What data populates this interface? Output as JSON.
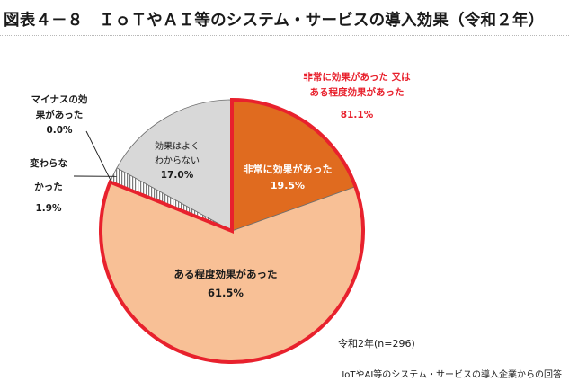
{
  "page": {
    "title": "図表４－８　ＩｏＴやＡＩ等のシステム・サービスの導入効果（令和２年）"
  },
  "chart_data": {
    "type": "pie",
    "title": "図表４－８　ＩｏＴやＡＩ等のシステム・サービスの導入効果（令和２年）",
    "start": "12 o'clock, clockwise",
    "slices": [
      {
        "label": "非常に効果があった",
        "value": 19.5,
        "label_value": "19.5%",
        "color": "#e06b1f",
        "highlighted": true
      },
      {
        "label": "ある程度効果があった",
        "value": 61.5,
        "label_value": "61.5%",
        "color": "#f8c096",
        "highlighted": true
      },
      {
        "label": "マイナスの効果があった",
        "value": 0.0,
        "label_value": "0.0%",
        "color": "#ffffff",
        "highlighted": false
      },
      {
        "label": "変わらなかった",
        "value": 1.9,
        "label_value": "1.9%",
        "color": "#9a9a9a",
        "pattern": "vertical-hatch",
        "highlighted": false
      },
      {
        "label": "効果はよくわからない",
        "value": 17.0,
        "label_value": "17.0%",
        "color": "#d8d8d8",
        "highlighted": false
      }
    ],
    "outline_color": "#e8212d",
    "annotation": {
      "line1": "非常に効果があった 又は",
      "line2": "ある程度効果があった",
      "value": "81.1%",
      "color": "#e8212d"
    },
    "label_lines": {
      "plus": [
        "マイナスの効",
        "果があった",
        "0.0%"
      ],
      "unchanged": [
        "変わらな",
        "かった",
        "1.9%"
      ],
      "unknown": [
        "効果はよく",
        "わからない",
        "17.0%"
      ],
      "very": [
        "非常に効果があった",
        "19.5%"
      ],
      "some": [
        "ある程度効果があった",
        "61.5%"
      ]
    },
    "sample_note": "令和2年(n=296)",
    "source_note": "IoTやAI等のシステム・サービスの導入企業からの回答"
  }
}
